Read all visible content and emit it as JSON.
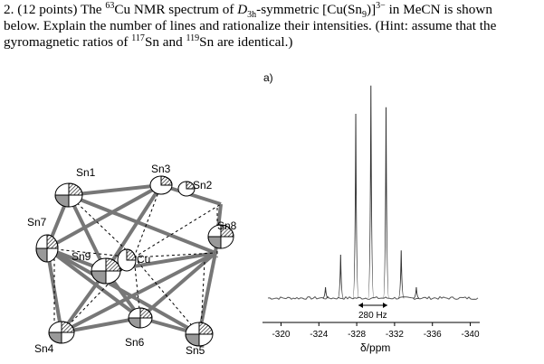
{
  "question": {
    "number": "2.",
    "points": "(12 points) The",
    "isotope_mass": "63",
    "isotope_symbol": "Cu NMR spectrum of",
    "symmetry_main": "D",
    "symmetry_sub": "3h",
    "symmetry_tail": "-symmetric [Cu(Sn",
    "formula_sub": "9",
    "formula_close": ")]",
    "charge": "3−",
    "line1_tail": " in MeCN is shown",
    "line2": "below.  Explain the number of lines and rationalize their intensities.  (Hint: assume that the",
    "line3_start": "gyromagnetic ratios of ",
    "sn117_mass": "117",
    "sn117_text": "Sn and ",
    "sn119_mass": "119",
    "sn119_text": "Sn are identical.)"
  },
  "structure": {
    "atoms": [
      "Sn1",
      "Sn3",
      "Sn2",
      "Sn7",
      "Sn8",
      "Sn9",
      "Cu",
      "Sn4",
      "Sn6",
      "Sn5"
    ],
    "colors": {
      "ink": "#000000",
      "bond": "#555555",
      "shade": "#888888"
    }
  },
  "spectrum": {
    "panel_label": "a)",
    "coupling_label": "280 Hz",
    "x_axis_label": "δ/ppm",
    "chart_data": {
      "type": "line",
      "title": "",
      "xlabel": "δ/ppm",
      "ylabel": "",
      "xlim": [
        -319,
        -341
      ],
      "x_ticks": [
        -320,
        -324,
        -328,
        -332,
        -336,
        -340
      ],
      "peaks": [
        {
          "x": -326.3,
          "rel_intensity": 0.2
        },
        {
          "x": -327.9,
          "rel_intensity": 0.85
        },
        {
          "x": -329.5,
          "rel_intensity": 0.98
        },
        {
          "x": -331.1,
          "rel_intensity": 0.88
        },
        {
          "x": -332.7,
          "rel_intensity": 0.22
        }
      ],
      "satellites": [
        {
          "x": -324.7,
          "rel_intensity": 0.05
        },
        {
          "x": -334.3,
          "rel_intensity": 0.05
        }
      ],
      "grid": false,
      "legend": "none"
    }
  }
}
